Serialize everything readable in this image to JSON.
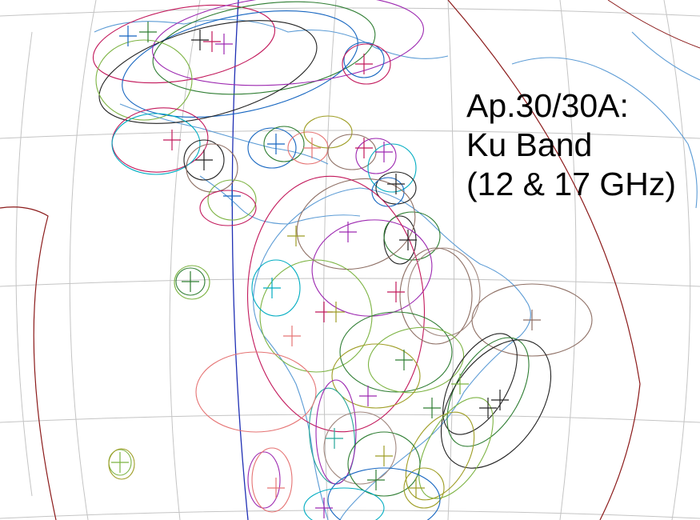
{
  "title_lines": [
    "Ap.30/30A:",
    "Ku Band",
    "(12 & 17 GHz)"
  ],
  "colors": {
    "graticule": "#c4c4c4",
    "coastline": "#5b9bd5",
    "limit_line": "#8b1a1a",
    "meridian": "#1f2fb4",
    "beam_palette": [
      "#c2185b",
      "#2e7d32",
      "#7cb342",
      "#1565c0",
      "#00acc1",
      "#8d6e63",
      "#9c27b0",
      "#9e9d24",
      "#212121",
      "#e57373",
      "#26a69a",
      "#a1887f"
    ]
  },
  "icons": [
    "globe-map",
    "service-area-ellipse",
    "beam-center-cross"
  ]
}
